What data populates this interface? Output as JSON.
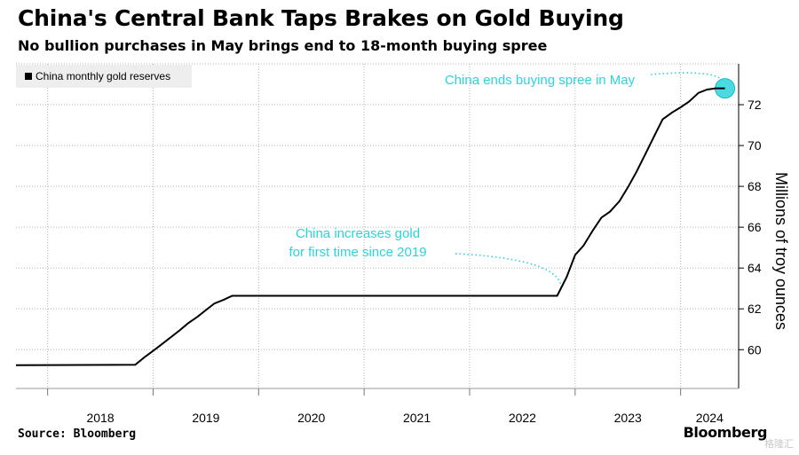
{
  "header": {
    "title": "China's Central Bank Taps Brakes on Gold Buying",
    "subtitle": "No bullion purchases in May brings end to 18-month buying spree"
  },
  "footer": {
    "source": "Source: Bloomberg",
    "brand": "Bloomberg",
    "watermark": "格隆汇"
  },
  "colors": {
    "line": "#000000",
    "annotation": "#2bd4dc",
    "grid": "#b5b5b5",
    "legend_bg": "#eeeeee"
  },
  "chart_data": {
    "type": "line",
    "title": "China's Central Bank Taps Brakes on Gold Buying",
    "subtitle": "No bullion purchases in May brings end to 18-month buying spree",
    "ylabel": "Millions of troy ounces",
    "xlabel": "",
    "ylim": [
      58.1,
      74
    ],
    "yticks": [
      60,
      62,
      64,
      66,
      68,
      70,
      72
    ],
    "xlim": [
      2017.7,
      2024.55
    ],
    "xticks": [
      "2018",
      "2019",
      "2020",
      "2021",
      "2022",
      "2023",
      "2024"
    ],
    "legend_position": "top-left",
    "grid": true,
    "series": [
      {
        "name": "China monthly gold reserves",
        "x": [
          2017.7,
          2018.83,
          2018.92,
          2019.0,
          2019.08,
          2019.17,
          2019.25,
          2019.33,
          2019.42,
          2019.5,
          2019.58,
          2019.67,
          2019.75,
          2019.83,
          2022.83,
          2022.92,
          2023.0,
          2023.08,
          2023.17,
          2023.25,
          2023.33,
          2023.42,
          2023.5,
          2023.58,
          2023.67,
          2023.75,
          2023.83,
          2023.92,
          2024.0,
          2024.08,
          2024.17,
          2024.25,
          2024.33,
          2024.42
        ],
        "values": [
          59.24,
          59.26,
          59.64,
          59.94,
          60.26,
          60.62,
          60.94,
          61.29,
          61.61,
          61.94,
          62.26,
          62.45,
          62.64,
          62.64,
          62.64,
          63.56,
          64.64,
          65.1,
          65.86,
          66.47,
          66.76,
          67.27,
          67.95,
          68.69,
          69.62,
          70.46,
          71.28,
          71.62,
          71.87,
          72.15,
          72.58,
          72.74,
          72.8,
          72.8
        ]
      }
    ],
    "annotations": [
      {
        "text": "China ends buying spree in May",
        "x": 2024.42,
        "y": 72.8
      },
      {
        "lines": [
          "China increases gold",
          "for first time since 2019"
        ],
        "x": 2022.92,
        "y": 62.64
      }
    ]
  }
}
